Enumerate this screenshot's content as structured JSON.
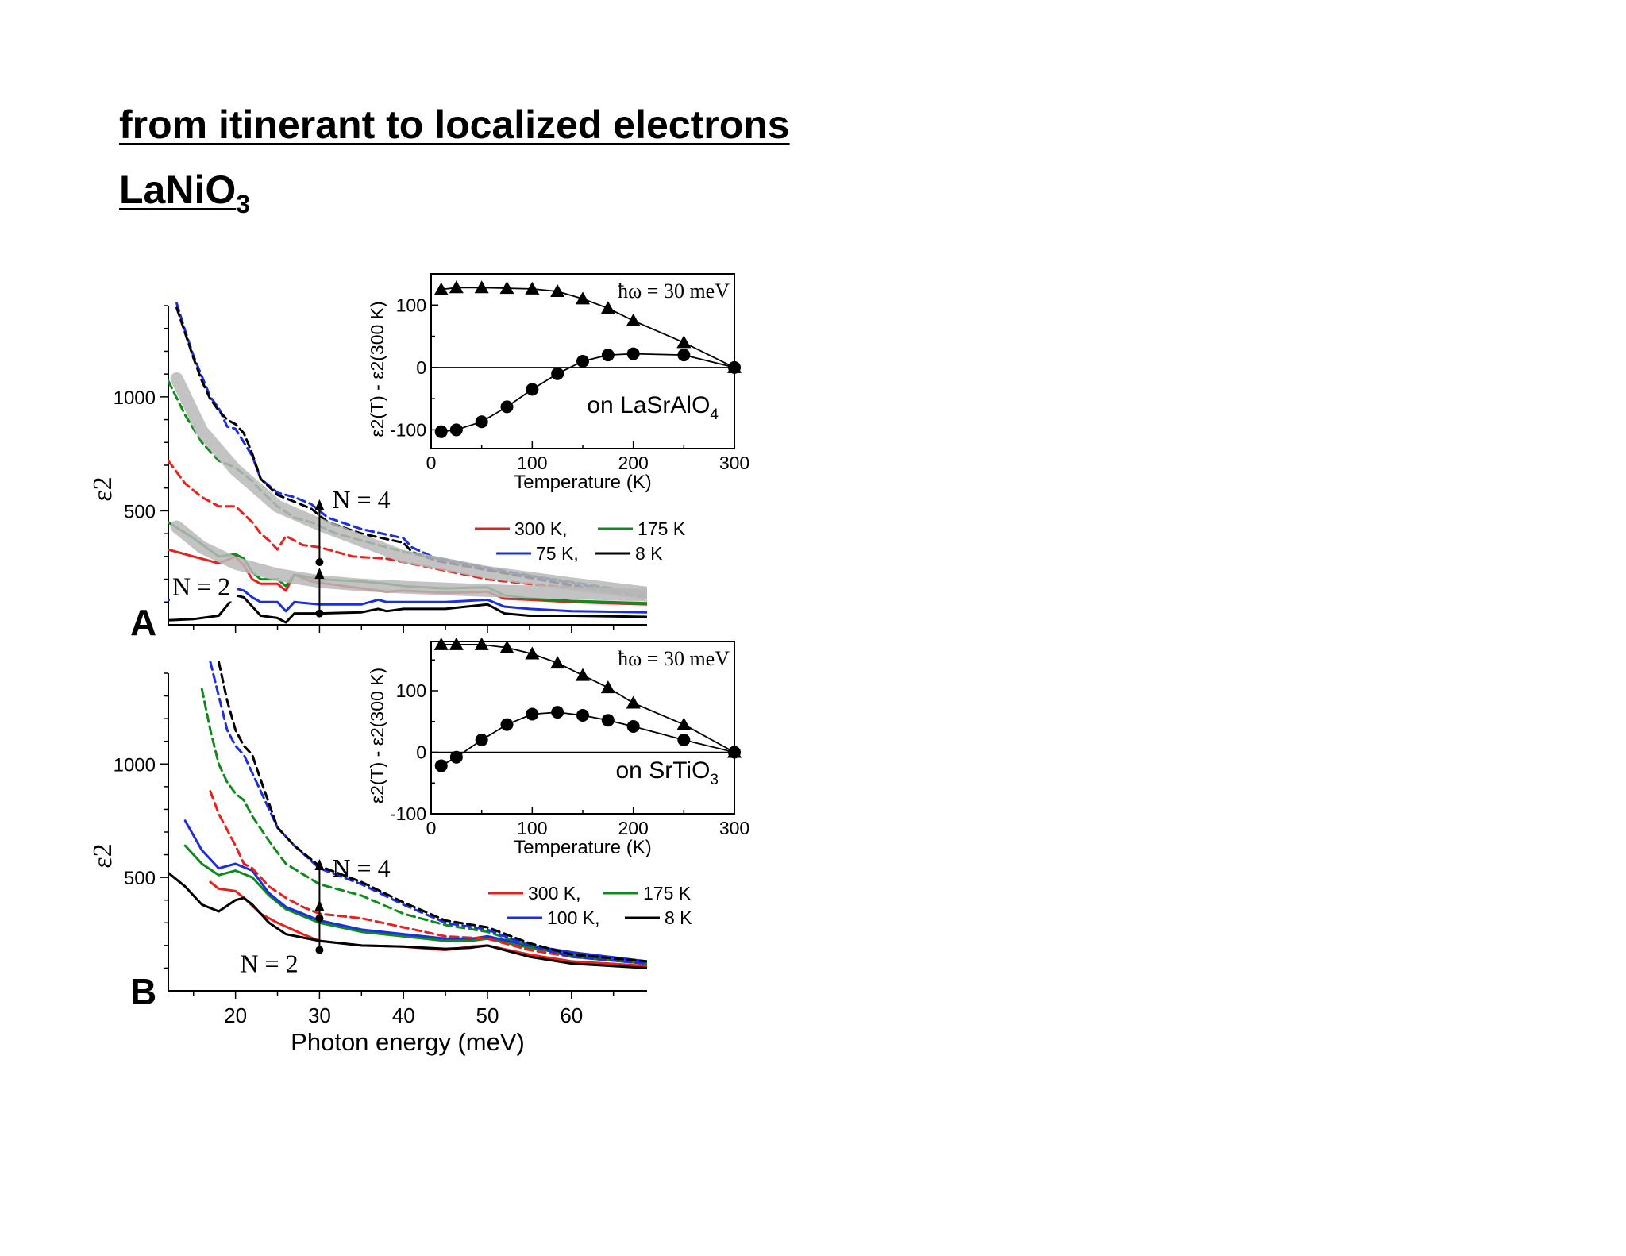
{
  "heading": {
    "line1": "from itinerant to localized electrons",
    "line2_main": "LaNiO",
    "line2_sub": "3"
  },
  "chart_data": [
    {
      "panel_letter": "A",
      "type": "line",
      "ylabel": "ε2",
      "xlabel": "",
      "xlim": [
        12,
        69
      ],
      "ylim": [
        0,
        1400
      ],
      "yticks": [
        500,
        1000
      ],
      "labels": {
        "n4": "N = 4",
        "n2": "N = 2"
      },
      "legend": [
        {
          "label": "300 K,",
          "color": "#e8211d"
        },
        {
          "label": "175 K",
          "color": "#118a1d"
        },
        {
          "label": "75 K,",
          "color": "#1b2fe0"
        },
        {
          "label": "8 K",
          "color": "#000000"
        }
      ],
      "marker_x": 30,
      "n4_arrow": [
        275,
        530
      ],
      "n2_arrow": [
        50,
        230
      ],
      "series": [
        {
          "color": "#e8211d",
          "dash": false,
          "x": [
            12,
            15,
            18,
            20,
            21,
            22,
            23,
            25,
            26,
            27,
            29,
            31,
            35,
            37,
            38,
            40,
            45,
            50,
            52,
            55,
            60,
            69
          ],
          "y": [
            330,
            300,
            270,
            300,
            260,
            200,
            180,
            180,
            150,
            220,
            190,
            180,
            160,
            150,
            145,
            150,
            140,
            145,
            115,
            110,
            100,
            90
          ]
        },
        {
          "color": "#118a1d",
          "dash": false,
          "x": [
            12,
            15,
            18,
            20,
            21,
            22,
            23,
            25,
            26,
            27,
            30,
            35,
            38,
            40,
            45,
            50,
            52,
            55,
            60,
            69
          ],
          "y": [
            450,
            380,
            300,
            310,
            290,
            230,
            200,
            200,
            170,
            220,
            200,
            190,
            180,
            170,
            160,
            165,
            130,
            115,
            105,
            95
          ]
        },
        {
          "color": "#1b2fe0",
          "dash": false,
          "x": [
            12,
            15,
            18,
            20,
            21,
            22,
            23,
            25,
            26,
            27,
            30,
            35,
            37,
            38,
            40,
            45,
            50,
            52,
            55,
            60,
            69
          ],
          "y": [
            110,
            110,
            110,
            160,
            150,
            120,
            100,
            100,
            60,
            100,
            90,
            90,
            110,
            100,
            100,
            100,
            110,
            80,
            70,
            60,
            55
          ]
        },
        {
          "color": "#000000",
          "dash": false,
          "x": [
            12,
            15,
            18,
            20,
            21,
            22,
            23,
            25,
            26,
            27,
            30,
            35,
            37,
            38,
            40,
            45,
            50,
            52,
            55,
            60,
            69
          ],
          "y": [
            20,
            25,
            40,
            130,
            120,
            80,
            40,
            30,
            10,
            50,
            50,
            55,
            70,
            60,
            70,
            70,
            90,
            50,
            40,
            40,
            35
          ]
        },
        {
          "color": "#e8211d",
          "dash": true,
          "x": [
            12,
            14,
            16,
            18,
            20,
            22,
            23,
            24,
            25,
            26,
            28,
            30,
            34,
            38,
            42,
            50,
            56,
            62,
            69
          ],
          "y": [
            720,
            620,
            560,
            520,
            520,
            450,
            400,
            370,
            330,
            390,
            350,
            340,
            300,
            290,
            260,
            200,
            175,
            160,
            140
          ]
        },
        {
          "color": "#118a1d",
          "dash": true,
          "x": [
            12,
            14,
            16,
            18,
            20,
            22,
            23,
            25,
            27,
            29,
            32,
            36,
            40,
            46,
            52,
            58,
            64,
            69
          ],
          "y": [
            1070,
            920,
            800,
            720,
            690,
            630,
            590,
            520,
            470,
            450,
            400,
            360,
            320,
            280,
            230,
            200,
            165,
            140
          ]
        },
        {
          "color": "#1b2fe0",
          "dash": true,
          "x": [
            13,
            14,
            15,
            16,
            17,
            18,
            19,
            20,
            21,
            22,
            23,
            25,
            27,
            29,
            31,
            35,
            40,
            41,
            44,
            50,
            56,
            62,
            69
          ],
          "y": [
            1410,
            1290,
            1180,
            1090,
            1000,
            950,
            870,
            860,
            800,
            740,
            640,
            580,
            560,
            530,
            470,
            420,
            380,
            340,
            290,
            250,
            210,
            170,
            130
          ]
        },
        {
          "color": "#000000",
          "dash": true,
          "x": [
            13,
            14,
            15,
            16,
            17,
            18,
            19,
            20,
            21,
            22,
            23,
            25,
            27,
            29,
            31,
            35,
            40,
            41,
            44,
            50,
            56,
            62,
            69
          ],
          "y": [
            1390,
            1280,
            1170,
            1070,
            990,
            940,
            900,
            880,
            840,
            750,
            640,
            570,
            540,
            510,
            450,
            400,
            360,
            320,
            280,
            240,
            200,
            160,
            120
          ]
        },
        {
          "color": "#b8b8b8",
          "dash": false,
          "thick": true,
          "x": [
            13,
            16,
            20,
            25,
            30,
            35,
            40,
            50,
            60,
            69
          ],
          "y": [
            1080,
            850,
            680,
            520,
            440,
            370,
            300,
            230,
            180,
            140
          ]
        },
        {
          "color": "#b8b8b8",
          "dash": false,
          "thick": true,
          "x": [
            13,
            16,
            20,
            25,
            30,
            35,
            40,
            50,
            60,
            69
          ],
          "y": [
            430,
            340,
            270,
            220,
            190,
            175,
            165,
            150,
            140,
            130
          ]
        }
      ]
    },
    {
      "panel_letter": "B",
      "type": "line",
      "ylabel": "ε2",
      "xlabel": "Photon energy (meV)",
      "xlim": [
        12,
        69
      ],
      "ylim": [
        0,
        1400
      ],
      "xticks": [
        20,
        30,
        40,
        50,
        60
      ],
      "yticks": [
        500,
        1000
      ],
      "labels": {
        "n4": "N = 4",
        "n2": "N = 2"
      },
      "legend": [
        {
          "label": "300 K,",
          "color": "#e8211d"
        },
        {
          "label": "175 K",
          "color": "#118a1d"
        },
        {
          "label": "100 K,",
          "color": "#1b2fe0"
        },
        {
          "label": "8 K",
          "color": "#000000"
        }
      ],
      "marker_x": 30,
      "n4_arrow": [
        320,
        560
      ],
      "n2_arrow": [
        180,
        380
      ],
      "series": [
        {
          "color": "#e8211d",
          "dash": false,
          "x": [
            17,
            18,
            20,
            21,
            23,
            25,
            28,
            30,
            35,
            40,
            45,
            48,
            50,
            55,
            60,
            69
          ],
          "y": [
            480,
            450,
            440,
            410,
            340,
            300,
            250,
            220,
            200,
            195,
            180,
            195,
            200,
            160,
            130,
            110
          ]
        },
        {
          "color": "#118a1d",
          "dash": false,
          "x": [
            14,
            16,
            18,
            20,
            22,
            24,
            26,
            30,
            35,
            40,
            45,
            48,
            50,
            55,
            60,
            69
          ],
          "y": [
            640,
            560,
            510,
            530,
            500,
            420,
            360,
            300,
            260,
            240,
            220,
            220,
            230,
            190,
            160,
            120
          ]
        },
        {
          "color": "#1b2fe0",
          "dash": false,
          "x": [
            14,
            16,
            18,
            20,
            22,
            24,
            26,
            30,
            35,
            40,
            45,
            48,
            50,
            55,
            60,
            69
          ],
          "y": [
            750,
            620,
            540,
            560,
            530,
            430,
            370,
            310,
            270,
            250,
            230,
            230,
            240,
            200,
            170,
            130
          ]
        },
        {
          "color": "#000000",
          "dash": false,
          "x": [
            12,
            14,
            16,
            18,
            20,
            21,
            22,
            24,
            26,
            30,
            35,
            40,
            45,
            48,
            50,
            55,
            60,
            69
          ],
          "y": [
            520,
            460,
            380,
            350,
            400,
            410,
            380,
            300,
            250,
            220,
            200,
            195,
            185,
            190,
            200,
            150,
            120,
            100
          ]
        },
        {
          "color": "#e8211d",
          "dash": true,
          "x": [
            17,
            18,
            20,
            21,
            22,
            24,
            26,
            28,
            30,
            35,
            40,
            45,
            50,
            55,
            60,
            69
          ],
          "y": [
            880,
            780,
            640,
            560,
            540,
            460,
            410,
            370,
            340,
            320,
            280,
            240,
            230,
            180,
            150,
            120
          ]
        },
        {
          "color": "#118a1d",
          "dash": true,
          "x": [
            16,
            17,
            18,
            19,
            20,
            21,
            22,
            24,
            26,
            30,
            35,
            40,
            45,
            50,
            55,
            60,
            69
          ],
          "y": [
            1330,
            1150,
            1000,
            920,
            870,
            840,
            770,
            660,
            560,
            470,
            420,
            340,
            290,
            260,
            200,
            150,
            120
          ]
        },
        {
          "color": "#1b2fe0",
          "dash": true,
          "x": [
            17,
            18,
            19,
            20,
            21,
            22,
            23,
            25,
            27,
            30,
            35,
            40,
            45,
            50,
            55,
            60,
            69
          ],
          "y": [
            1450,
            1300,
            1150,
            1080,
            1040,
            960,
            880,
            720,
            640,
            540,
            470,
            380,
            300,
            270,
            200,
            150,
            120
          ]
        },
        {
          "color": "#000000",
          "dash": true,
          "x": [
            18,
            19,
            20,
            21,
            22,
            23,
            25,
            27,
            30,
            35,
            40,
            45,
            50,
            55,
            60,
            69
          ],
          "y": [
            1450,
            1280,
            1150,
            1080,
            1040,
            930,
            720,
            640,
            550,
            480,
            390,
            310,
            280,
            210,
            160,
            130
          ]
        }
      ]
    },
    {
      "type": "scatter",
      "inset_of": "A",
      "annotation": "ħω = 30 meV",
      "note_main": "on LaSrAlO",
      "note_sub": "4",
      "xlabel": "Temperature (K)",
      "ylabel": "ε2(T) - ε2(300 K)",
      "xlim": [
        0,
        300
      ],
      "ylim": [
        -130,
        150
      ],
      "xticks": [
        0,
        100,
        200,
        300
      ],
      "yticks": [
        -100,
        0,
        100
      ],
      "series": [
        {
          "marker": "triangle",
          "x": [
            10,
            25,
            50,
            75,
            100,
            125,
            150,
            175,
            200,
            250,
            300
          ],
          "y": [
            125,
            128,
            128,
            127,
            126,
            122,
            110,
            95,
            75,
            40,
            0
          ]
        },
        {
          "marker": "circle",
          "x": [
            10,
            25,
            50,
            75,
            100,
            125,
            150,
            175,
            200,
            250,
            300
          ],
          "y": [
            -103,
            -100,
            -87,
            -63,
            -35,
            -10,
            10,
            20,
            22,
            20,
            0
          ]
        }
      ]
    },
    {
      "type": "scatter",
      "inset_of": "B",
      "annotation": "ħω = 30 meV",
      "note_main": "on SrTiO",
      "note_sub": "3",
      "xlabel": "Temperature (K)",
      "ylabel": "ε2(T) - ε2(300 K)",
      "xlim": [
        0,
        300
      ],
      "ylim": [
        -100,
        180
      ],
      "xticks": [
        0,
        100,
        200,
        300
      ],
      "yticks": [
        -100,
        0,
        100
      ],
      "series": [
        {
          "marker": "triangle",
          "x": [
            10,
            25,
            50,
            75,
            100,
            125,
            150,
            175,
            200,
            250,
            300
          ],
          "y": [
            175,
            175,
            175,
            170,
            160,
            145,
            125,
            105,
            80,
            45,
            0
          ]
        },
        {
          "marker": "circle",
          "x": [
            10,
            25,
            50,
            75,
            100,
            125,
            150,
            175,
            200,
            250,
            300
          ],
          "y": [
            -22,
            -8,
            20,
            45,
            62,
            65,
            60,
            52,
            42,
            20,
            0
          ]
        }
      ]
    }
  ]
}
